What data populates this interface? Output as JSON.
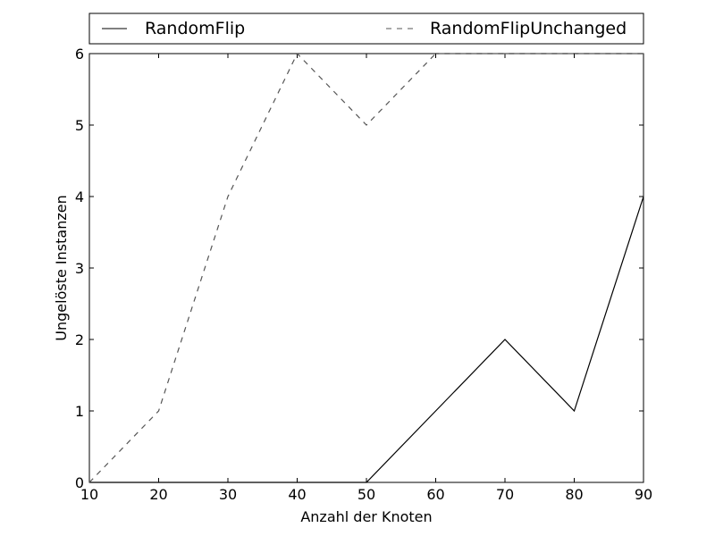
{
  "chart_data": {
    "type": "line",
    "x": [
      10,
      20,
      30,
      40,
      50,
      60,
      70,
      80,
      90
    ],
    "series": [
      {
        "name": "RandomFlip",
        "values": [
          0,
          0,
          0,
          0,
          0,
          1,
          2,
          1,
          4
        ],
        "style": "solid",
        "color": "#000000"
      },
      {
        "name": "RandomFlipUnchanged",
        "values": [
          0,
          1,
          4,
          6,
          5,
          6,
          6,
          6,
          6
        ],
        "style": "dashed",
        "color": "#555555"
      }
    ],
    "xlabel": "Anzahl der Knoten",
    "ylabel": "Ungelöste Instanzen",
    "xlim": [
      10,
      90
    ],
    "ylim": [
      0,
      6
    ],
    "xticks": [
      10,
      20,
      30,
      40,
      50,
      60,
      70,
      80,
      90
    ],
    "yticks": [
      0,
      1,
      2,
      3,
      4,
      5,
      6
    ],
    "grid": false,
    "legend_position": "top, above plot, two columns"
  }
}
